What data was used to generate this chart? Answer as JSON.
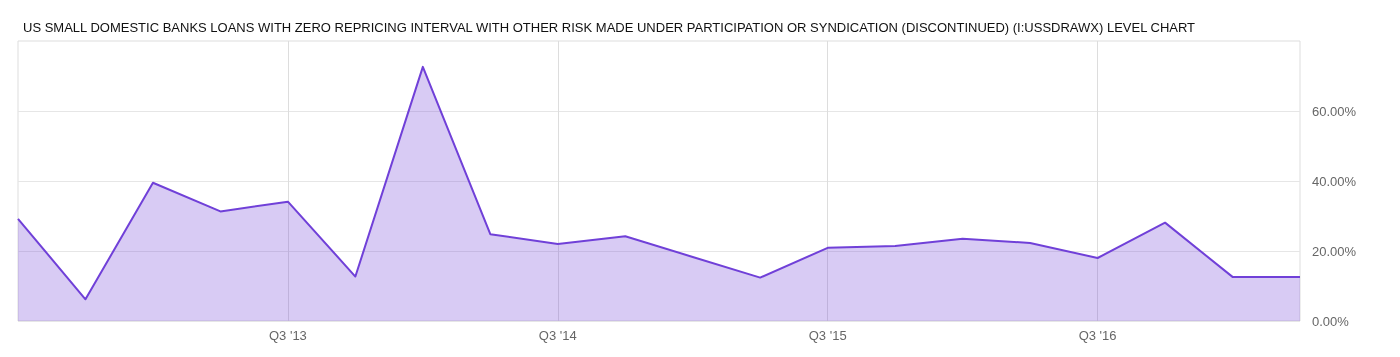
{
  "chart_data": {
    "type": "area",
    "title": "US SMALL DOMESTIC BANKS LOANS WITH ZERO REPRICING INTERVAL WITH OTHER RISK MADE UNDER PARTICIPATION OR SYNDICATION (DISCONTINUED) (I:USSDRAWX) LEVEL CHART",
    "categories": [
      null,
      null,
      null,
      null,
      "Q3 '13",
      null,
      null,
      null,
      "Q3 '14",
      null,
      null,
      null,
      "Q3 '15",
      null,
      null,
      null,
      "Q3 '16",
      null,
      null,
      null
    ],
    "series": [
      {
        "color": "#7040d8",
        "values": [
          29.2,
          6.2,
          39.5,
          31.3,
          34.1,
          12.7,
          72.6,
          24.8,
          22.0,
          24.2,
          18.3,
          12.4,
          20.9,
          21.4,
          23.5,
          22.3,
          18.0,
          28.1,
          12.6,
          12.6
        ]
      }
    ],
    "ylim": [
      0,
      80
    ],
    "yticks": [
      {
        "value": 0,
        "label": "0.00%"
      },
      {
        "value": 20,
        "label": "20.00%"
      },
      {
        "value": 40,
        "label": "40.00%"
      },
      {
        "value": 60,
        "label": "60.00%"
      }
    ],
    "grid": true,
    "marker": "none",
    "line_style": "solid"
  }
}
